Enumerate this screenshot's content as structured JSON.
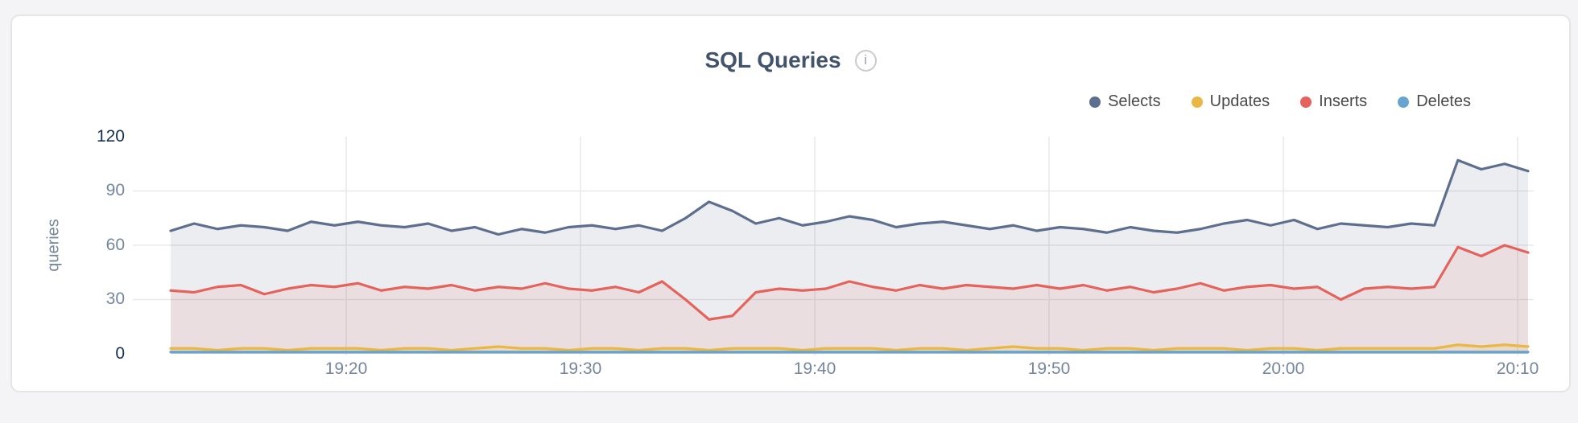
{
  "page": {
    "background": "#f4f4f6"
  },
  "panel": {
    "background": "#ffffff",
    "border_color": "#e5e5e8"
  },
  "header": {
    "title": "SQL Queries",
    "info_icon_glyph": "i"
  },
  "chart_data": {
    "type": "area",
    "title": "SQL Queries",
    "xlabel": "",
    "ylabel": "queries",
    "ylim": [
      0,
      120
    ],
    "y_ticks": [
      120,
      90,
      60,
      30,
      0
    ],
    "x_ticks": {
      "labels": [
        "19:20",
        "19:30",
        "19:40",
        "19:50",
        "20:00",
        "20:10"
      ]
    },
    "x_start": "19:12",
    "x_interval_minutes": 1,
    "grid": true,
    "legend_position": "top-right",
    "colors": {
      "grid_line": "#e8e8ea",
      "axis_tick_text": "#76869e",
      "axis_tick_text_emphasis": "#16304f",
      "title_text": "#42536d",
      "legend_text": "#4a4a4c"
    },
    "series": [
      {
        "name": "Selects",
        "color": "#5d6e8e",
        "fill": "rgba(93,110,142,0.12)",
        "values": [
          68,
          72,
          69,
          71,
          70,
          68,
          73,
          71,
          73,
          71,
          70,
          72,
          68,
          70,
          66,
          69,
          67,
          70,
          71,
          69,
          71,
          68,
          75,
          84,
          79,
          72,
          75,
          71,
          73,
          76,
          74,
          70,
          72,
          73,
          71,
          69,
          71,
          68,
          70,
          69,
          67,
          70,
          68,
          67,
          69,
          72,
          74,
          71,
          74,
          69,
          72,
          71,
          70,
          72,
          71,
          107,
          102,
          105,
          101
        ]
      },
      {
        "name": "Updates",
        "color": "#e9b844",
        "fill": "rgba(233,184,68,0.15)",
        "values": [
          3,
          3,
          2,
          3,
          3,
          2,
          3,
          3,
          3,
          2,
          3,
          3,
          2,
          3,
          4,
          3,
          3,
          2,
          3,
          3,
          2,
          3,
          3,
          2,
          3,
          3,
          3,
          2,
          3,
          3,
          3,
          2,
          3,
          3,
          2,
          3,
          4,
          3,
          3,
          2,
          3,
          3,
          2,
          3,
          3,
          3,
          2,
          3,
          3,
          2,
          3,
          3,
          3,
          3,
          3,
          5,
          4,
          5,
          4
        ]
      },
      {
        "name": "Inserts",
        "color": "#e4635c",
        "fill": "rgba(228,99,92,0.10)",
        "values": [
          35,
          34,
          37,
          38,
          33,
          36,
          38,
          37,
          39,
          35,
          37,
          36,
          38,
          35,
          37,
          36,
          39,
          36,
          35,
          37,
          34,
          40,
          30,
          19,
          21,
          34,
          36,
          35,
          36,
          40,
          37,
          35,
          38,
          36,
          38,
          37,
          36,
          38,
          36,
          38,
          35,
          37,
          34,
          36,
          39,
          35,
          37,
          38,
          36,
          37,
          30,
          36,
          37,
          36,
          37,
          59,
          54,
          60,
          56
        ]
      },
      {
        "name": "Deletes",
        "color": "#68a4d0",
        "fill": "rgba(104,164,208,0.18)",
        "values": [
          1,
          1,
          1,
          1,
          1,
          1,
          1,
          1,
          1,
          1,
          1,
          1,
          1,
          1,
          1,
          1,
          1,
          1,
          1,
          1,
          1,
          1,
          1,
          1,
          1,
          1,
          1,
          1,
          1,
          1,
          1,
          1,
          1,
          1,
          1,
          1,
          1,
          1,
          1,
          1,
          1,
          1,
          1,
          1,
          1,
          1,
          1,
          1,
          1,
          1,
          1,
          1,
          1,
          1,
          1,
          1,
          1,
          1,
          1
        ]
      }
    ]
  }
}
